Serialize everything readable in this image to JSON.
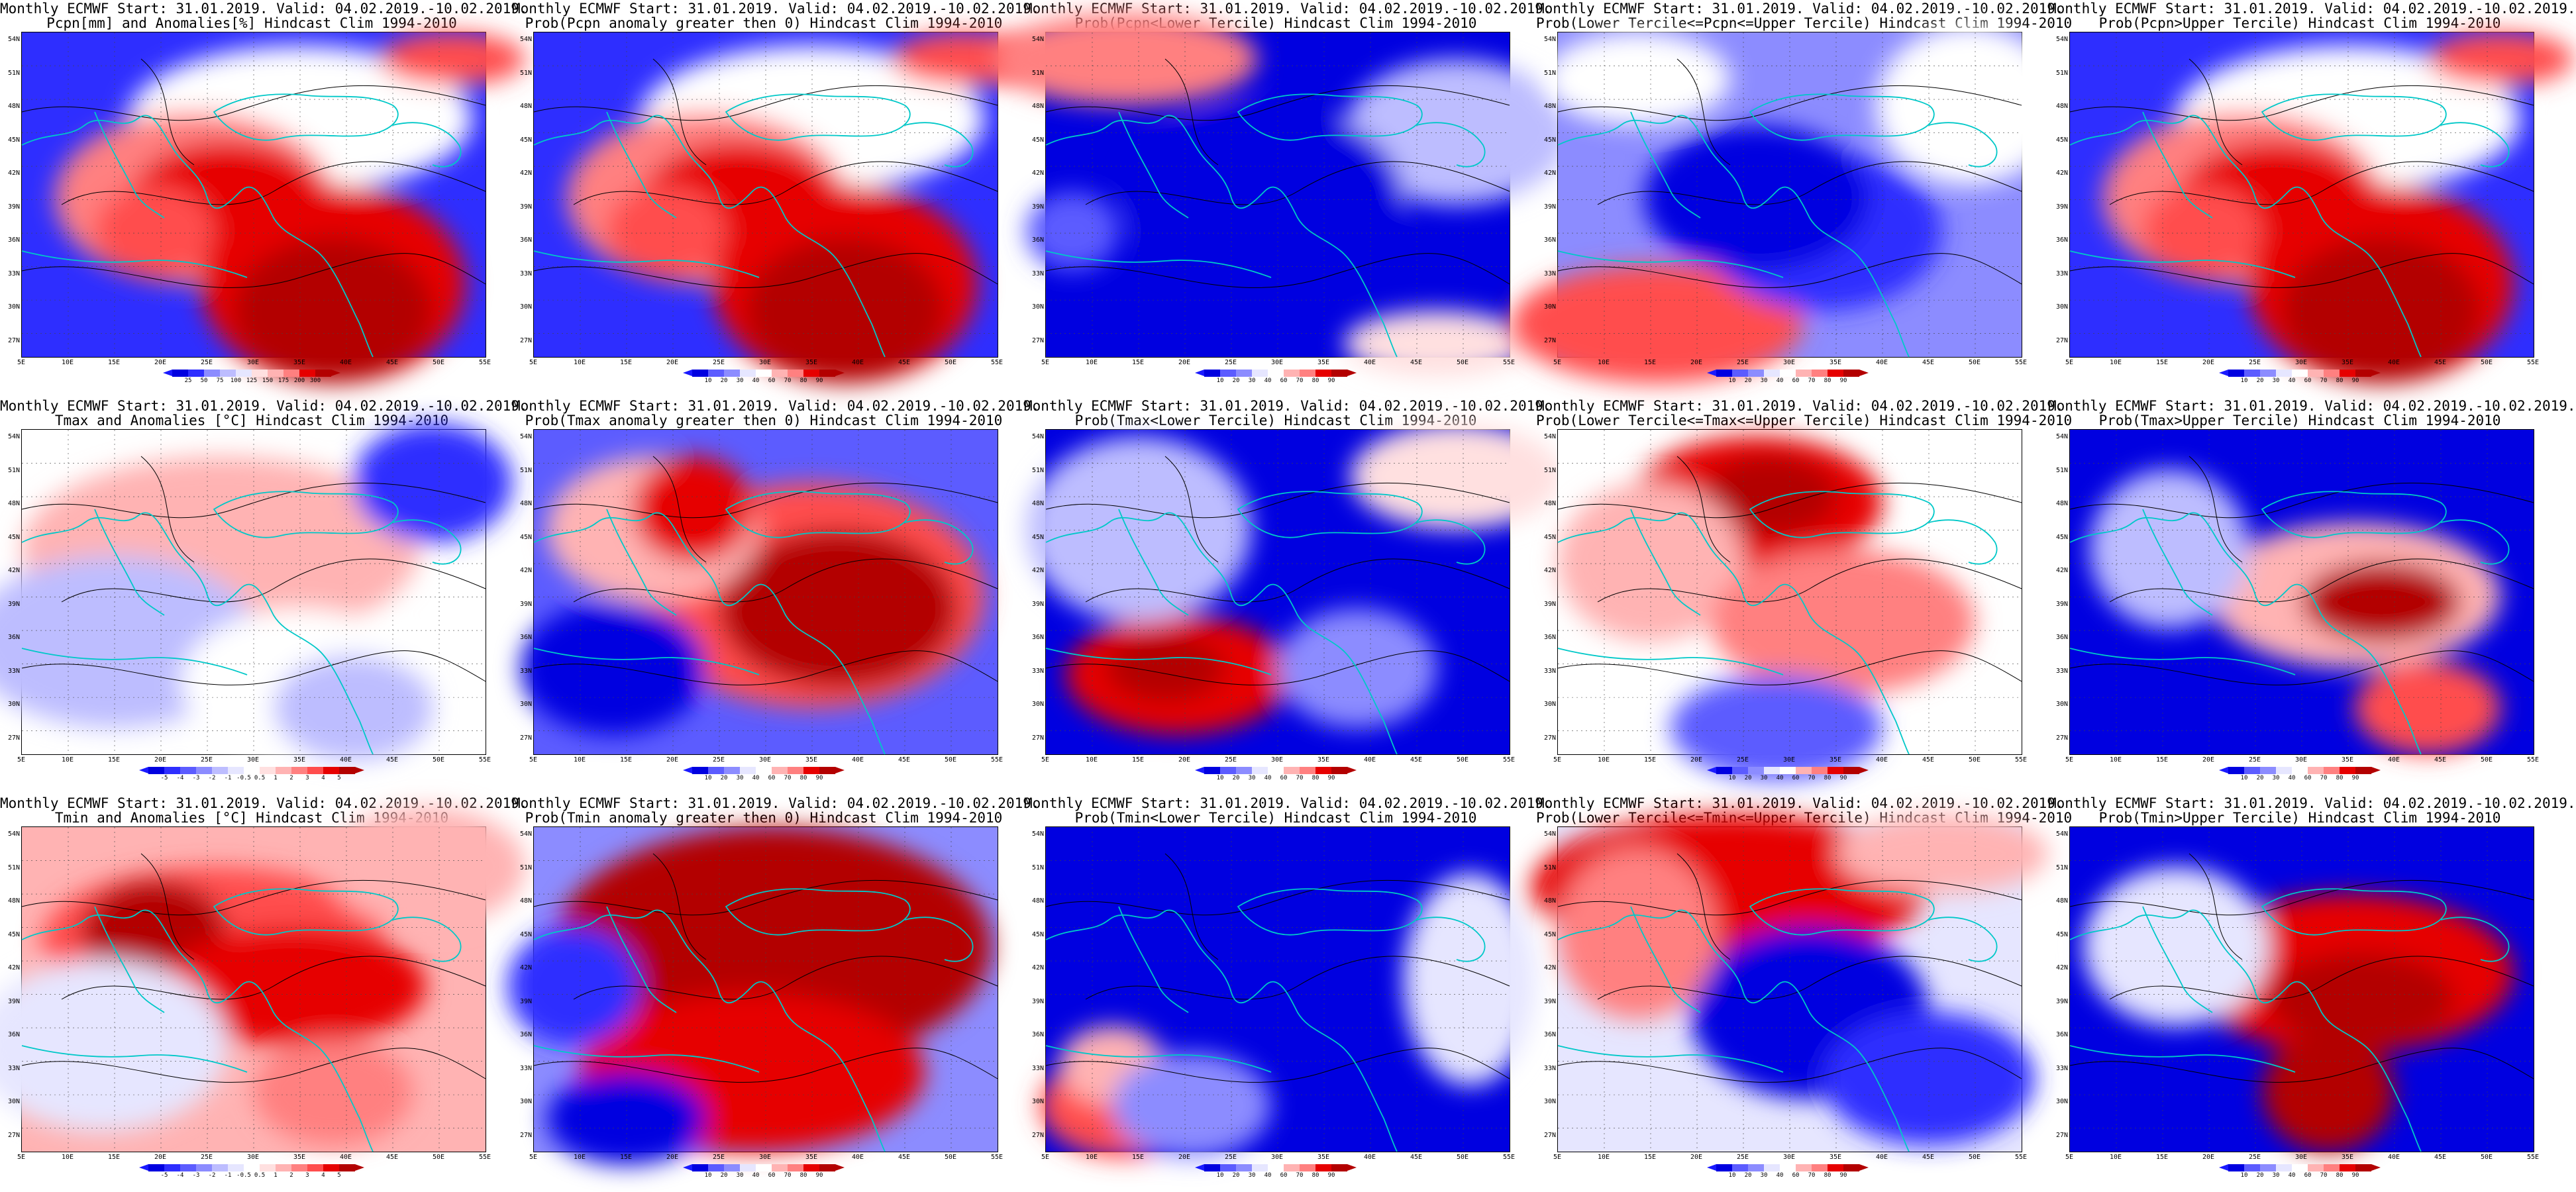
{
  "lat_labels": [
    "54N",
    "51N",
    "48N",
    "45N",
    "42N",
    "39N",
    "36N",
    "33N",
    "30N",
    "27N"
  ],
  "lon_labels": [
    "5E",
    "10E",
    "15E",
    "20E",
    "25E",
    "30E",
    "35E",
    "40E",
    "45E",
    "50E",
    "55E"
  ],
  "colors": {
    "scale": [
      "#0000e0",
      "#2e2eff",
      "#5c5cff",
      "#8c8cff",
      "#bdbdff",
      "#e6e6ff",
      "#ffffff",
      "#ffe0e0",
      "#ffb3b3",
      "#ff8080",
      "#ff4d4d",
      "#e60000",
      "#b30000"
    ],
    "coast": "#00c8c8",
    "contour": "#000000"
  },
  "colorbars": {
    "pcpn_anom": [
      "25",
      "50",
      "75",
      "100",
      "125",
      "150",
      "175",
      "200",
      "300"
    ],
    "prob": [
      "10",
      "20",
      "30",
      "40",
      "60",
      "70",
      "80",
      "90"
    ],
    "temp_anom": [
      "-5",
      "-4",
      "-3",
      "-2",
      "-1",
      "-0.5",
      "0.5",
      "1",
      "2",
      "3",
      "4",
      "5"
    ]
  },
  "panels": [
    {
      "t1": "Monthly ECMWF Start: 31.01.2019. Valid: 04.02.2019.-10.02.2019.",
      "t2": "Pcpn[mm] and Anomalies[%] Hindcast Clim 1994-2010",
      "cbar": "pcpn_anom",
      "pattern": "pa"
    },
    {
      "t1": "Monthly ECMWF Start: 31.01.2019. Valid: 04.02.2019.-10.02.2019.",
      "t2": "Prob(Pcpn anomaly greater then 0) Hindcast Clim 1994-2010",
      "cbar": "prob",
      "pattern": "pa"
    },
    {
      "t1": "Monthly ECMWF Start: 31.01.2019. Valid: 04.02.2019.-10.02.2019.",
      "t2": "Prob(Pcpn<Lower Tercile) Hindcast Clim 1994-2010",
      "cbar": "prob",
      "pattern": "pl"
    },
    {
      "t1": "Monthly ECMWF Start: 31.01.2019. Valid: 04.02.2019.-10.02.2019.",
      "t2": "Prob(Lower Tercile<=Pcpn<=Upper Tercile) Hindcast Clim 1994-2010",
      "cbar": "prob",
      "pattern": "pm"
    },
    {
      "t1": "Monthly ECMWF Start: 31.01.2019. Valid: 04.02.2019.-10.02.2019.",
      "t2": "Prob(Pcpn>Upper Tercile) Hindcast Clim 1994-2010",
      "cbar": "prob",
      "pattern": "pa"
    },
    {
      "t1": "Monthly ECMWF Start: 31.01.2019. Valid: 04.02.2019.-10.02.2019.",
      "t2": "Tmax and Anomalies [°C] Hindcast Clim 1994-2010",
      "cbar": "temp_anom",
      "pattern": "ta"
    },
    {
      "t1": "Monthly ECMWF Start: 31.01.2019. Valid: 04.02.2019.-10.02.2019.",
      "t2": "Prob(Tmax anomaly greater then 0) Hindcast Clim 1994-2010",
      "cbar": "prob",
      "pattern": "tp"
    },
    {
      "t1": "Monthly ECMWF Start: 31.01.2019. Valid: 04.02.2019.-10.02.2019.",
      "t2": "Prob(Tmax<Lower Tercile) Hindcast Clim 1994-2010",
      "cbar": "prob",
      "pattern": "tl"
    },
    {
      "t1": "Monthly ECMWF Start: 31.01.2019. Valid: 04.02.2019.-10.02.2019.",
      "t2": "Prob(Lower Tercile<=Tmax<=Upper Tercile) Hindcast Clim 1994-2010",
      "cbar": "prob",
      "pattern": "tm"
    },
    {
      "t1": "Monthly ECMWF Start: 31.01.2019. Valid: 04.02.2019.-10.02.2019.",
      "t2": "Prob(Tmax>Upper Tercile) Hindcast Clim 1994-2010",
      "cbar": "prob",
      "pattern": "tu"
    },
    {
      "t1": "Monthly ECMWF Start: 31.01.2019. Valid: 04.02.2019.-10.02.2019.",
      "t2": "Tmin and Anomalies [°C] Hindcast Clim 1994-2010",
      "cbar": "temp_anom",
      "pattern": "na"
    },
    {
      "t1": "Monthly ECMWF Start: 31.01.2019. Valid: 04.02.2019.-10.02.2019.",
      "t2": "Prob(Tmin anomaly greater then 0) Hindcast Clim 1994-2010",
      "cbar": "prob",
      "pattern": "np"
    },
    {
      "t1": "Monthly ECMWF Start: 31.01.2019. Valid: 04.02.2019.-10.02.2019.",
      "t2": "Prob(Tmin<Lower Tercile) Hindcast Clim 1994-2010",
      "cbar": "prob",
      "pattern": "nl"
    },
    {
      "t1": "Monthly ECMWF Start: 31.01.2019. Valid: 04.02.2019.-10.02.2019.",
      "t2": "Prob(Lower Tercile<=Tmin<=Upper Tercile) Hindcast Clim 1994-2010",
      "cbar": "prob",
      "pattern": "nm"
    },
    {
      "t1": "Monthly ECMWF Start: 31.01.2019. Valid: 04.02.2019.-10.02.2019.",
      "t2": "Prob(Tmin>Upper Tercile) Hindcast Clim 1994-2010",
      "cbar": "prob",
      "pattern": "nu"
    }
  ]
}
